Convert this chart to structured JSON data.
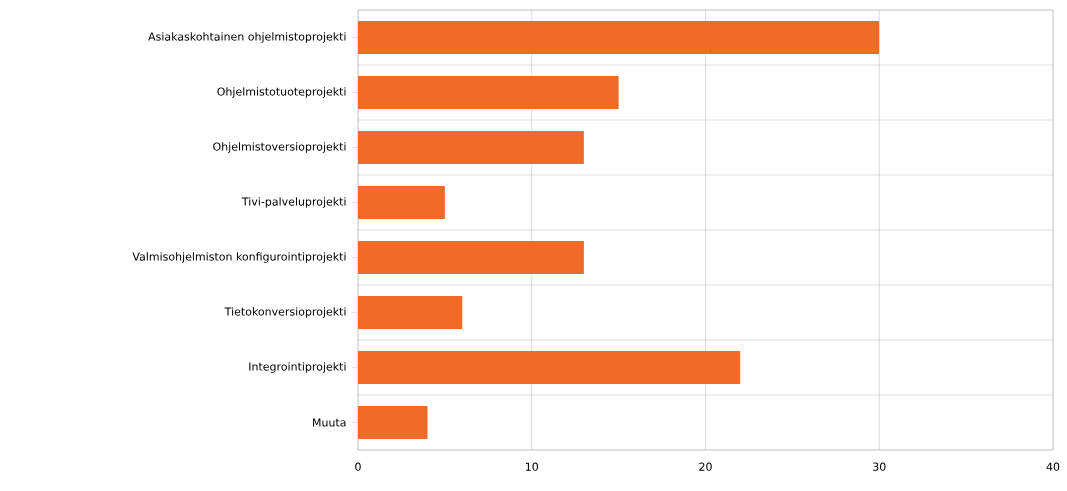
{
  "chart_data": {
    "type": "bar",
    "orientation": "horizontal",
    "categories": [
      "Asiakaskohtainen ohjelmistoprojekti",
      "Ohjelmistotuoteprojekti",
      "Ohjelmistoversioprojekti",
      "Tivi-palveluprojekti",
      "Valmisohjelmiston konfigurointiprojekti",
      "Tietokonversioprojekti",
      "Integrointiprojekti",
      "Muuta"
    ],
    "values": [
      30,
      15,
      13,
      5,
      13,
      6,
      22,
      4
    ],
    "color": "#f26a27",
    "xlim": [
      0,
      40
    ],
    "xticks": [
      0,
      10,
      20,
      30,
      40
    ],
    "grid": true
  }
}
